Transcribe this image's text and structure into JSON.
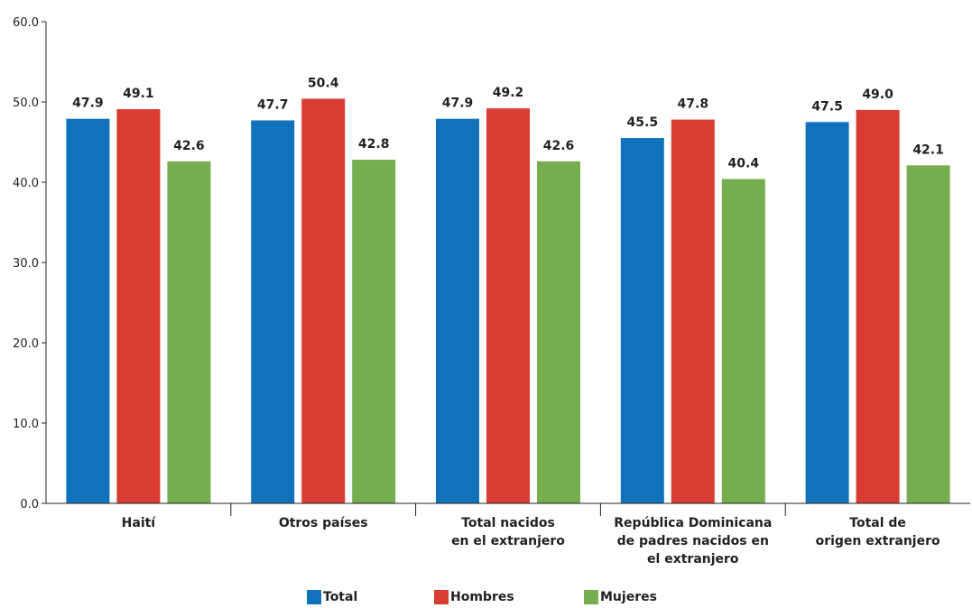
{
  "chart_data": {
    "type": "bar",
    "categories": [
      [
        "Haití"
      ],
      [
        "Otros países"
      ],
      [
        "Total nacidos",
        "en el extranjero"
      ],
      [
        "República Dominicana",
        "de padres nacidos en",
        "el extranjero"
      ],
      [
        "Total de",
        "origen extranjero"
      ]
    ],
    "series": [
      {
        "name": "Total",
        "color": "#1172bc",
        "values": [
          47.9,
          47.7,
          47.9,
          45.5,
          47.5
        ],
        "labels": [
          "47.9",
          "47.7",
          "47.9",
          "45.5",
          "47.5"
        ]
      },
      {
        "name": "Hombres",
        "color": "#d93c32",
        "values": [
          49.1,
          50.4,
          49.2,
          47.8,
          49.0
        ],
        "labels": [
          "49.1",
          "50.4",
          "49.2",
          "47.8",
          "49.0"
        ]
      },
      {
        "name": "Mujeres",
        "color": "#76ad4f",
        "values": [
          42.6,
          42.8,
          42.6,
          40.4,
          42.1
        ],
        "labels": [
          "42.6",
          "42.8",
          "42.6",
          "40.4",
          "42.1"
        ]
      }
    ],
    "yticks": [
      "0.0",
      "10.0",
      "20.0",
      "30.0",
      "40.0",
      "50.0",
      "60.0"
    ],
    "ylim": [
      0,
      60
    ],
    "grid": false,
    "legend_position": "bottom-center",
    "title": "",
    "xlabel": "",
    "ylabel": ""
  }
}
